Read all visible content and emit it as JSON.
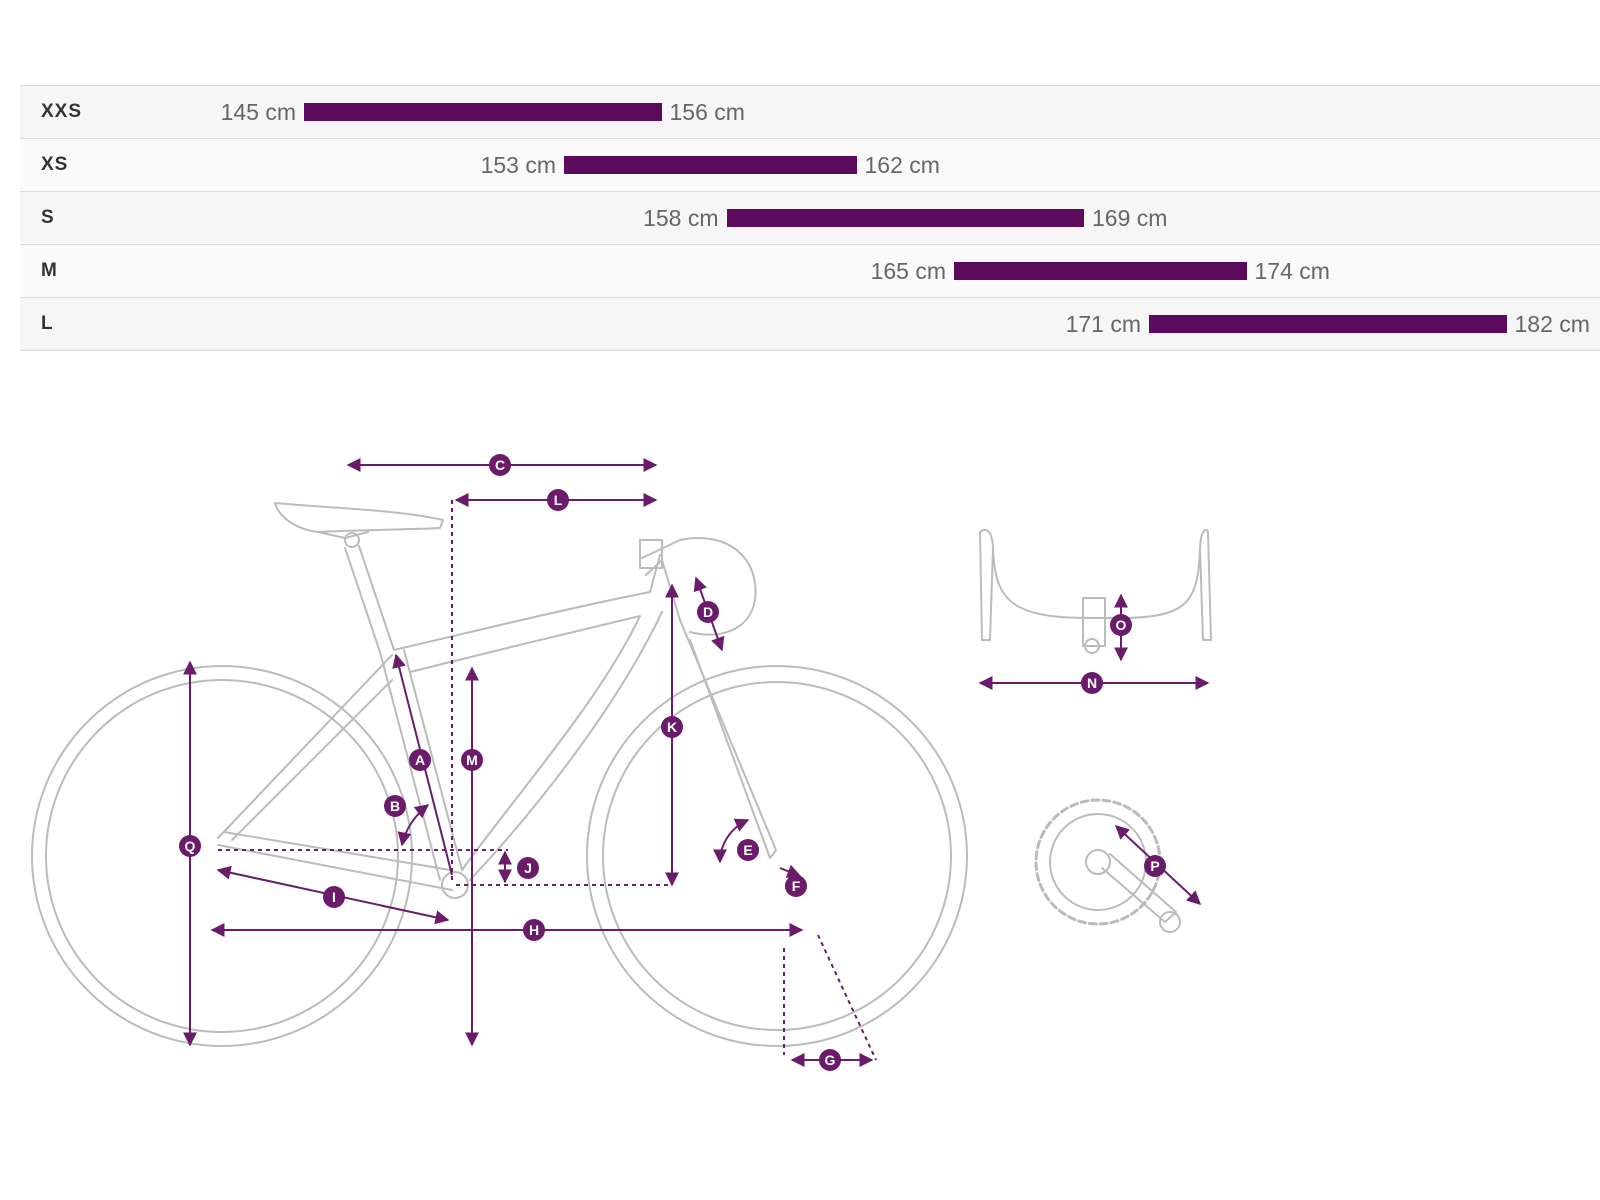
{
  "size_chart": {
    "bar_color": "#5c0a5c",
    "rows": [
      {
        "size": "XXS",
        "min_cm": 145,
        "max_cm": 156,
        "min_label": "145 cm",
        "max_label": "156 cm"
      },
      {
        "size": "XS",
        "min_cm": 153,
        "max_cm": 162,
        "min_label": "153 cm",
        "max_label": "162 cm"
      },
      {
        "size": "S",
        "min_cm": 158,
        "max_cm": 169,
        "min_label": "158 cm",
        "max_label": "169 cm"
      },
      {
        "size": "M",
        "min_cm": 165,
        "max_cm": 174,
        "min_label": "165 cm",
        "max_label": "174 cm"
      },
      {
        "size": "L",
        "min_cm": 171,
        "max_cm": 182,
        "min_label": "171 cm",
        "max_label": "182 cm"
      }
    ]
  },
  "geometry": {
    "accent_color": "#6a1b6a",
    "outline_color": "#bbbbbb",
    "markers": [
      "A",
      "B",
      "C",
      "D",
      "E",
      "F",
      "G",
      "H",
      "I",
      "J",
      "K",
      "L",
      "M",
      "N",
      "O",
      "P",
      "Q"
    ]
  }
}
